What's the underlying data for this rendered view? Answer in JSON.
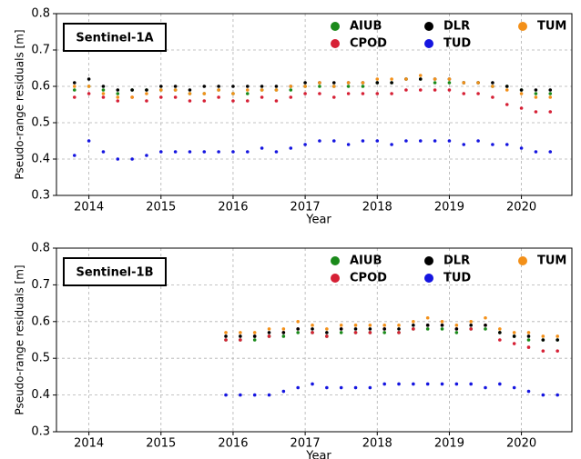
{
  "chart_data": [
    {
      "type": "scatter",
      "title": "Sentinel-1A",
      "xlabel": "Year",
      "ylabel": "Pseudo-range residuals [m]",
      "xlim": [
        2013.55,
        2020.7
      ],
      "xticks": [
        2014,
        2015,
        2016,
        2017,
        2018,
        2019,
        2020
      ],
      "ylim": [
        0.3,
        0.8
      ],
      "yticks": [
        0.3,
        0.4,
        0.5,
        0.6,
        0.7,
        0.8
      ],
      "grid": true,
      "legend": "upper right",
      "x": [
        2013.8,
        2014.0,
        2014.2,
        2014.4,
        2014.6,
        2014.8,
        2015.0,
        2015.2,
        2015.4,
        2015.6,
        2015.8,
        2016.0,
        2016.2,
        2016.4,
        2016.6,
        2016.8,
        2017.0,
        2017.2,
        2017.4,
        2017.6,
        2017.8,
        2018.0,
        2018.2,
        2018.4,
        2018.6,
        2018.8,
        2019.0,
        2019.2,
        2019.4,
        2019.6,
        2019.8,
        2020.0,
        2020.2,
        2020.4
      ],
      "series": [
        {
          "name": "AIUB",
          "color": "#1a8a1a",
          "values": [
            0.59,
            0.6,
            0.59,
            0.58,
            0.59,
            0.59,
            0.59,
            0.59,
            0.58,
            0.58,
            0.59,
            0.58,
            0.58,
            0.59,
            0.59,
            0.59,
            0.6,
            0.6,
            0.6,
            0.6,
            0.6,
            0.61,
            0.61,
            0.62,
            0.62,
            0.61,
            0.61,
            0.61,
            0.61,
            0.6,
            0.6,
            0.59,
            0.58,
            0.58
          ]
        },
        {
          "name": "CPOD",
          "color": "#d62035",
          "values": [
            0.57,
            0.58,
            0.57,
            0.56,
            0.57,
            0.56,
            0.57,
            0.57,
            0.56,
            0.56,
            0.57,
            0.56,
            0.56,
            0.57,
            0.56,
            0.57,
            0.58,
            0.58,
            0.57,
            0.58,
            0.58,
            0.58,
            0.58,
            0.59,
            0.59,
            0.59,
            0.59,
            0.58,
            0.58,
            0.57,
            0.55,
            0.54,
            0.53,
            0.53
          ]
        },
        {
          "name": "DLR",
          "color": "#000000",
          "values": [
            0.61,
            0.62,
            0.6,
            0.59,
            0.59,
            0.59,
            0.6,
            0.6,
            0.59,
            0.6,
            0.6,
            0.6,
            0.6,
            0.6,
            0.6,
            0.6,
            0.61,
            0.61,
            0.61,
            0.61,
            0.61,
            0.61,
            0.61,
            0.62,
            0.62,
            0.62,
            0.62,
            0.61,
            0.61,
            0.61,
            0.6,
            0.59,
            0.59,
            0.59
          ]
        },
        {
          "name": "TUD",
          "color": "#1515e0",
          "values": [
            0.41,
            0.45,
            0.42,
            0.4,
            0.4,
            0.41,
            0.42,
            0.42,
            0.42,
            0.42,
            0.42,
            0.42,
            0.42,
            0.43,
            0.42,
            0.43,
            0.44,
            0.45,
            0.45,
            0.44,
            0.45,
            0.45,
            0.44,
            0.45,
            0.45,
            0.45,
            0.45,
            0.44,
            0.45,
            0.44,
            0.44,
            0.43,
            0.42,
            0.42
          ]
        },
        {
          "name": "TUM",
          "color": "#f39019",
          "values": [
            0.6,
            0.6,
            0.58,
            0.57,
            0.57,
            0.58,
            0.59,
            0.59,
            0.58,
            0.58,
            0.59,
            0.58,
            0.59,
            0.59,
            0.59,
            0.6,
            0.6,
            0.61,
            0.6,
            0.61,
            0.61,
            0.62,
            0.62,
            0.62,
            0.63,
            0.62,
            0.62,
            0.61,
            0.61,
            0.6,
            0.59,
            0.58,
            0.57,
            0.57
          ]
        }
      ]
    },
    {
      "type": "scatter",
      "title": "Sentinel-1B",
      "xlabel": "Year",
      "ylabel": "Pseudo-range residuals [m]",
      "xlim": [
        2013.55,
        2020.7
      ],
      "xticks": [
        2014,
        2015,
        2016,
        2017,
        2018,
        2019,
        2020
      ],
      "ylim": [
        0.3,
        0.8
      ],
      "yticks": [
        0.3,
        0.4,
        0.5,
        0.6,
        0.7,
        0.8
      ],
      "grid": true,
      "legend": "upper right",
      "x": [
        2015.9,
        2016.1,
        2016.3,
        2016.5,
        2016.7,
        2016.9,
        2017.1,
        2017.3,
        2017.5,
        2017.7,
        2017.9,
        2018.1,
        2018.3,
        2018.5,
        2018.7,
        2018.9,
        2019.1,
        2019.3,
        2019.5,
        2019.7,
        2019.9,
        2020.1,
        2020.3,
        2020.5
      ],
      "series": [
        {
          "name": "AIUB",
          "color": "#1a8a1a",
          "values": [
            0.55,
            0.55,
            0.55,
            0.56,
            0.56,
            0.57,
            0.57,
            0.56,
            0.57,
            0.57,
            0.57,
            0.57,
            0.57,
            0.58,
            0.58,
            0.58,
            0.57,
            0.58,
            0.58,
            0.57,
            0.56,
            0.55,
            0.55,
            0.55
          ]
        },
        {
          "name": "CPOD",
          "color": "#d62035",
          "values": [
            0.55,
            0.55,
            0.56,
            0.56,
            0.57,
            0.58,
            0.57,
            0.56,
            0.58,
            0.57,
            0.57,
            0.58,
            0.57,
            0.58,
            0.59,
            0.59,
            0.58,
            0.58,
            0.59,
            0.55,
            0.54,
            0.53,
            0.52,
            0.52
          ]
        },
        {
          "name": "DLR",
          "color": "#000000",
          "values": [
            0.56,
            0.56,
            0.56,
            0.57,
            0.57,
            0.58,
            0.58,
            0.57,
            0.58,
            0.58,
            0.58,
            0.58,
            0.58,
            0.59,
            0.59,
            0.59,
            0.58,
            0.59,
            0.59,
            0.57,
            0.56,
            0.56,
            0.55,
            0.55
          ]
        },
        {
          "name": "TUD",
          "color": "#1515e0",
          "values": [
            0.4,
            0.4,
            0.4,
            0.4,
            0.41,
            0.42,
            0.43,
            0.42,
            0.42,
            0.42,
            0.42,
            0.43,
            0.43,
            0.43,
            0.43,
            0.43,
            0.43,
            0.43,
            0.42,
            0.43,
            0.42,
            0.41,
            0.4,
            0.4
          ]
        },
        {
          "name": "TUM",
          "color": "#f39019",
          "values": [
            0.57,
            0.57,
            0.57,
            0.58,
            0.58,
            0.6,
            0.59,
            0.58,
            0.59,
            0.59,
            0.59,
            0.59,
            0.59,
            0.6,
            0.61,
            0.6,
            0.59,
            0.6,
            0.61,
            0.58,
            0.57,
            0.57,
            0.56,
            0.56
          ]
        }
      ]
    }
  ]
}
